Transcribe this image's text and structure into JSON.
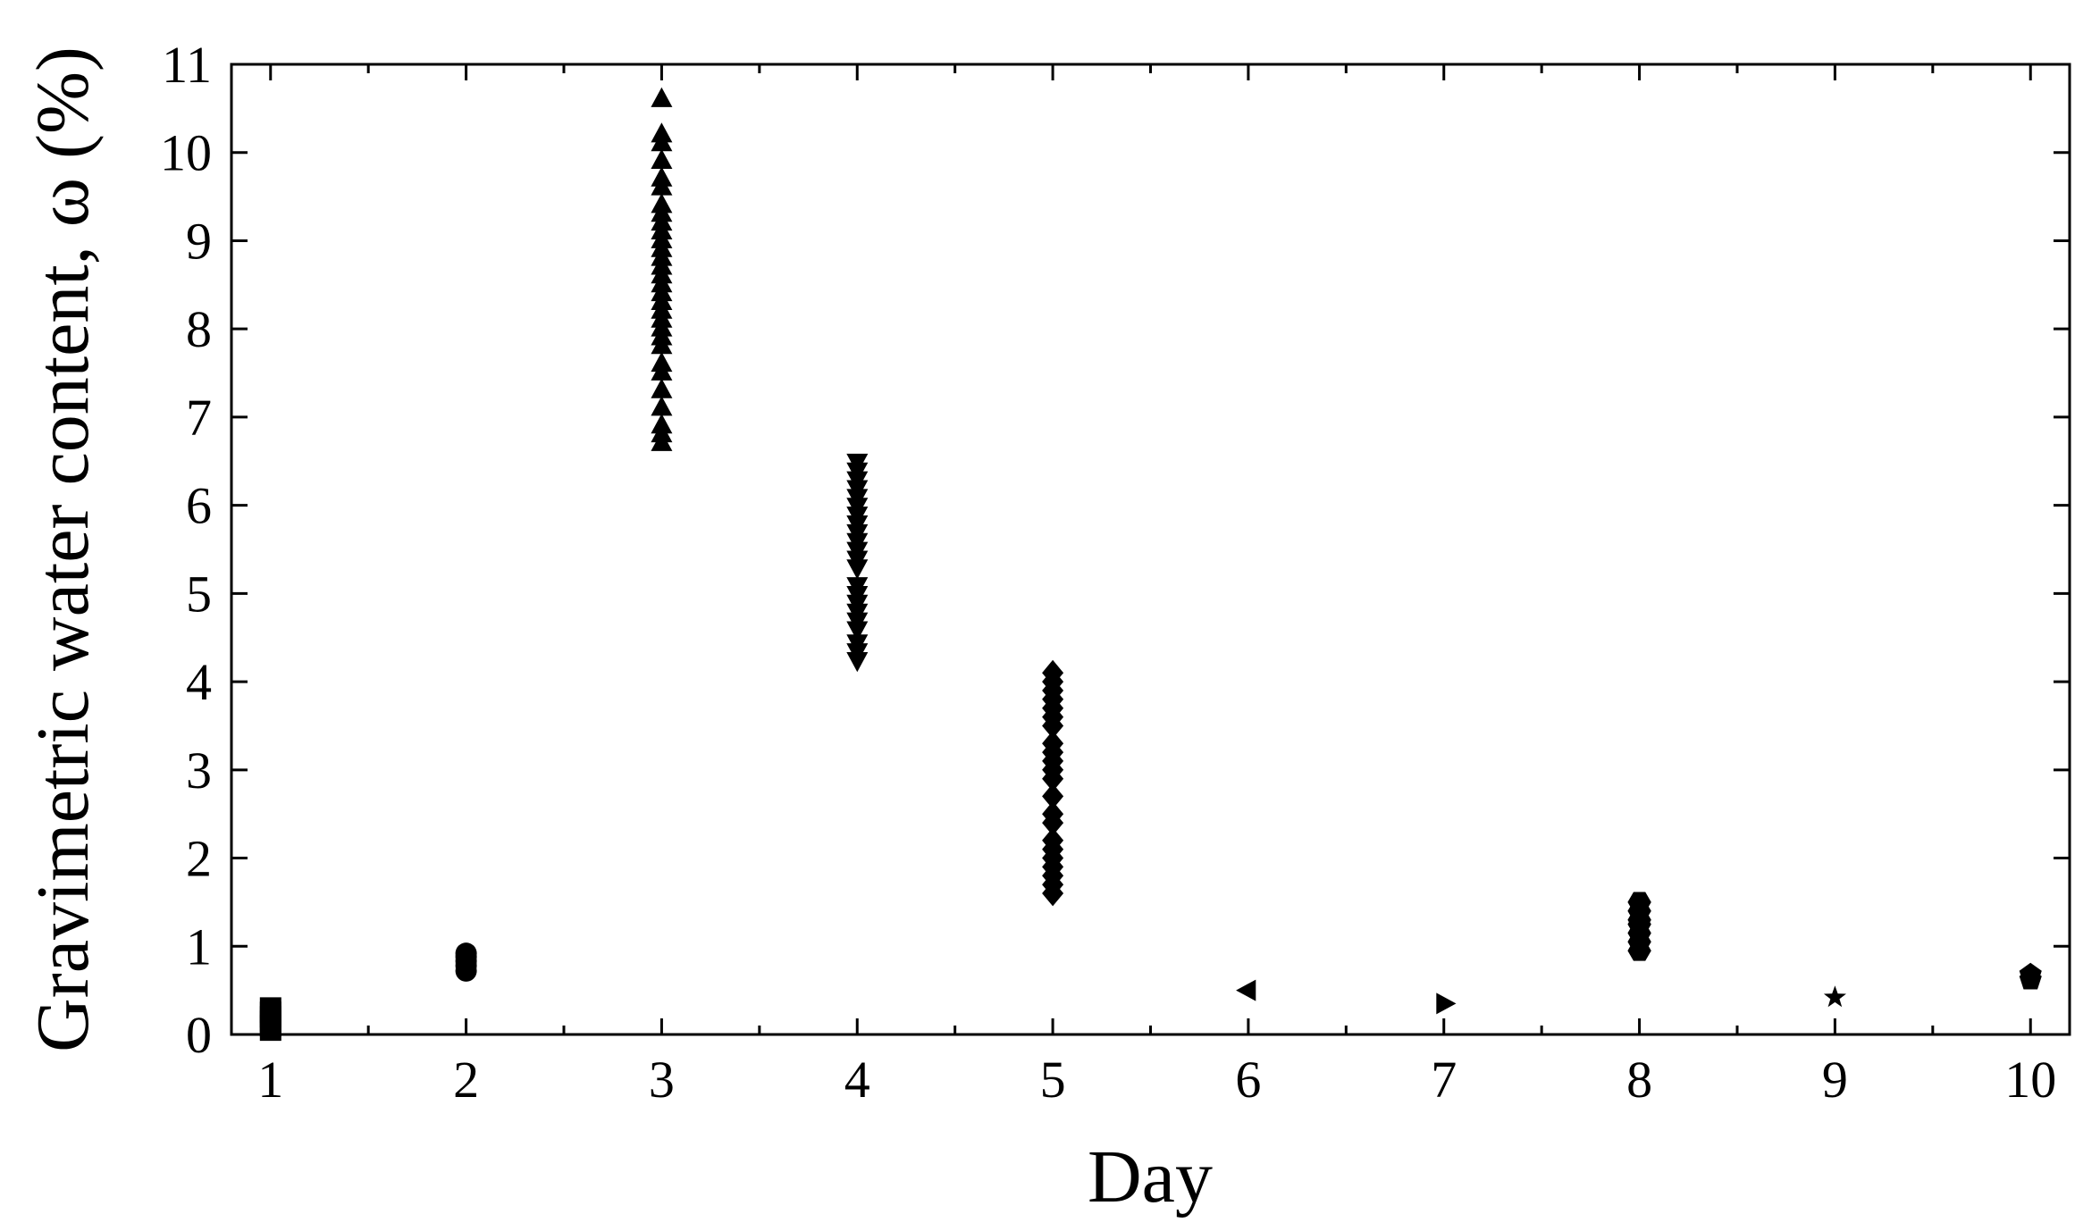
{
  "chart_data": {
    "type": "scatter",
    "x_label": "Day",
    "y_label": "Gravimetric water content, ω (%)",
    "xlim": [
      0.8,
      10.2
    ],
    "ylim": [
      0,
      11
    ],
    "xticks": [
      1,
      2,
      3,
      4,
      5,
      6,
      7,
      8,
      9,
      10
    ],
    "xminorticks": [
      1.5,
      2.5,
      3.5,
      4.5,
      5.5,
      6.5,
      7.5,
      8.5,
      9.5
    ],
    "yticks": [
      0,
      1,
      2,
      3,
      4,
      5,
      6,
      7,
      8,
      9,
      10,
      11
    ],
    "series": [
      {
        "marker": "square",
        "color": "#000000",
        "x": [
          1,
          1,
          1,
          1,
          1,
          1
        ],
        "values": [
          0.05,
          0.1,
          0.15,
          0.2,
          0.25,
          0.3
        ]
      },
      {
        "marker": "circle",
        "color": "#000000",
        "x": [
          2,
          2,
          2,
          2,
          2
        ],
        "values": [
          0.72,
          0.78,
          0.83,
          0.88,
          0.92
        ]
      },
      {
        "marker": "triangle-up",
        "color": "#000000",
        "x": [
          3,
          3,
          3,
          3,
          3,
          3,
          3,
          3,
          3,
          3,
          3,
          3,
          3,
          3,
          3,
          3,
          3,
          3,
          3,
          3,
          3,
          3,
          3,
          3,
          3,
          3,
          3,
          3,
          3,
          3
        ],
        "values": [
          6.7,
          6.8,
          6.9,
          7.1,
          7.3,
          7.5,
          7.6,
          7.8,
          7.9,
          8.0,
          8.1,
          8.2,
          8.3,
          8.4,
          8.5,
          8.6,
          8.7,
          8.8,
          8.9,
          9.0,
          9.1,
          9.2,
          9.3,
          9.4,
          9.6,
          9.7,
          9.9,
          10.1,
          10.2,
          10.6
        ]
      },
      {
        "marker": "triangle-down",
        "color": "#000000",
        "x": [
          4,
          4,
          4,
          4,
          4,
          4,
          4,
          4,
          4,
          4,
          4,
          4,
          4,
          4,
          4,
          4,
          4,
          4,
          4,
          4,
          4,
          4
        ],
        "values": [
          4.25,
          4.35,
          4.45,
          4.6,
          4.7,
          4.8,
          4.9,
          5.0,
          5.1,
          5.3,
          5.4,
          5.5,
          5.6,
          5.7,
          5.8,
          5.9,
          6.0,
          6.1,
          6.2,
          6.3,
          6.4,
          6.5
        ]
      },
      {
        "marker": "diamond",
        "color": "#000000",
        "x": [
          5,
          5,
          5,
          5,
          5,
          5,
          5,
          5,
          5,
          5,
          5,
          5,
          5,
          5,
          5,
          5,
          5,
          5,
          5,
          5,
          5,
          5
        ],
        "values": [
          1.6,
          1.7,
          1.8,
          1.9,
          2.0,
          2.1,
          2.2,
          2.4,
          2.5,
          2.7,
          2.9,
          3.0,
          3.1,
          3.2,
          3.3,
          3.5,
          3.6,
          3.7,
          3.8,
          3.9,
          4.0,
          4.1
        ]
      },
      {
        "marker": "triangle-left",
        "color": "#000000",
        "x": [
          6
        ],
        "values": [
          0.5
        ]
      },
      {
        "marker": "triangle-right",
        "color": "#000000",
        "x": [
          7
        ],
        "values": [
          0.35
        ]
      },
      {
        "marker": "hexagon",
        "color": "#000000",
        "x": [
          8,
          8,
          8,
          8,
          8,
          8,
          8
        ],
        "values": [
          0.95,
          1.05,
          1.15,
          1.25,
          1.3,
          1.4,
          1.5
        ]
      },
      {
        "marker": "star",
        "color": "#000000",
        "x": [
          9
        ],
        "values": [
          0.42
        ]
      },
      {
        "marker": "pentagon",
        "color": "#000000",
        "x": [
          10,
          10
        ],
        "values": [
          0.62,
          0.68
        ]
      }
    ]
  }
}
